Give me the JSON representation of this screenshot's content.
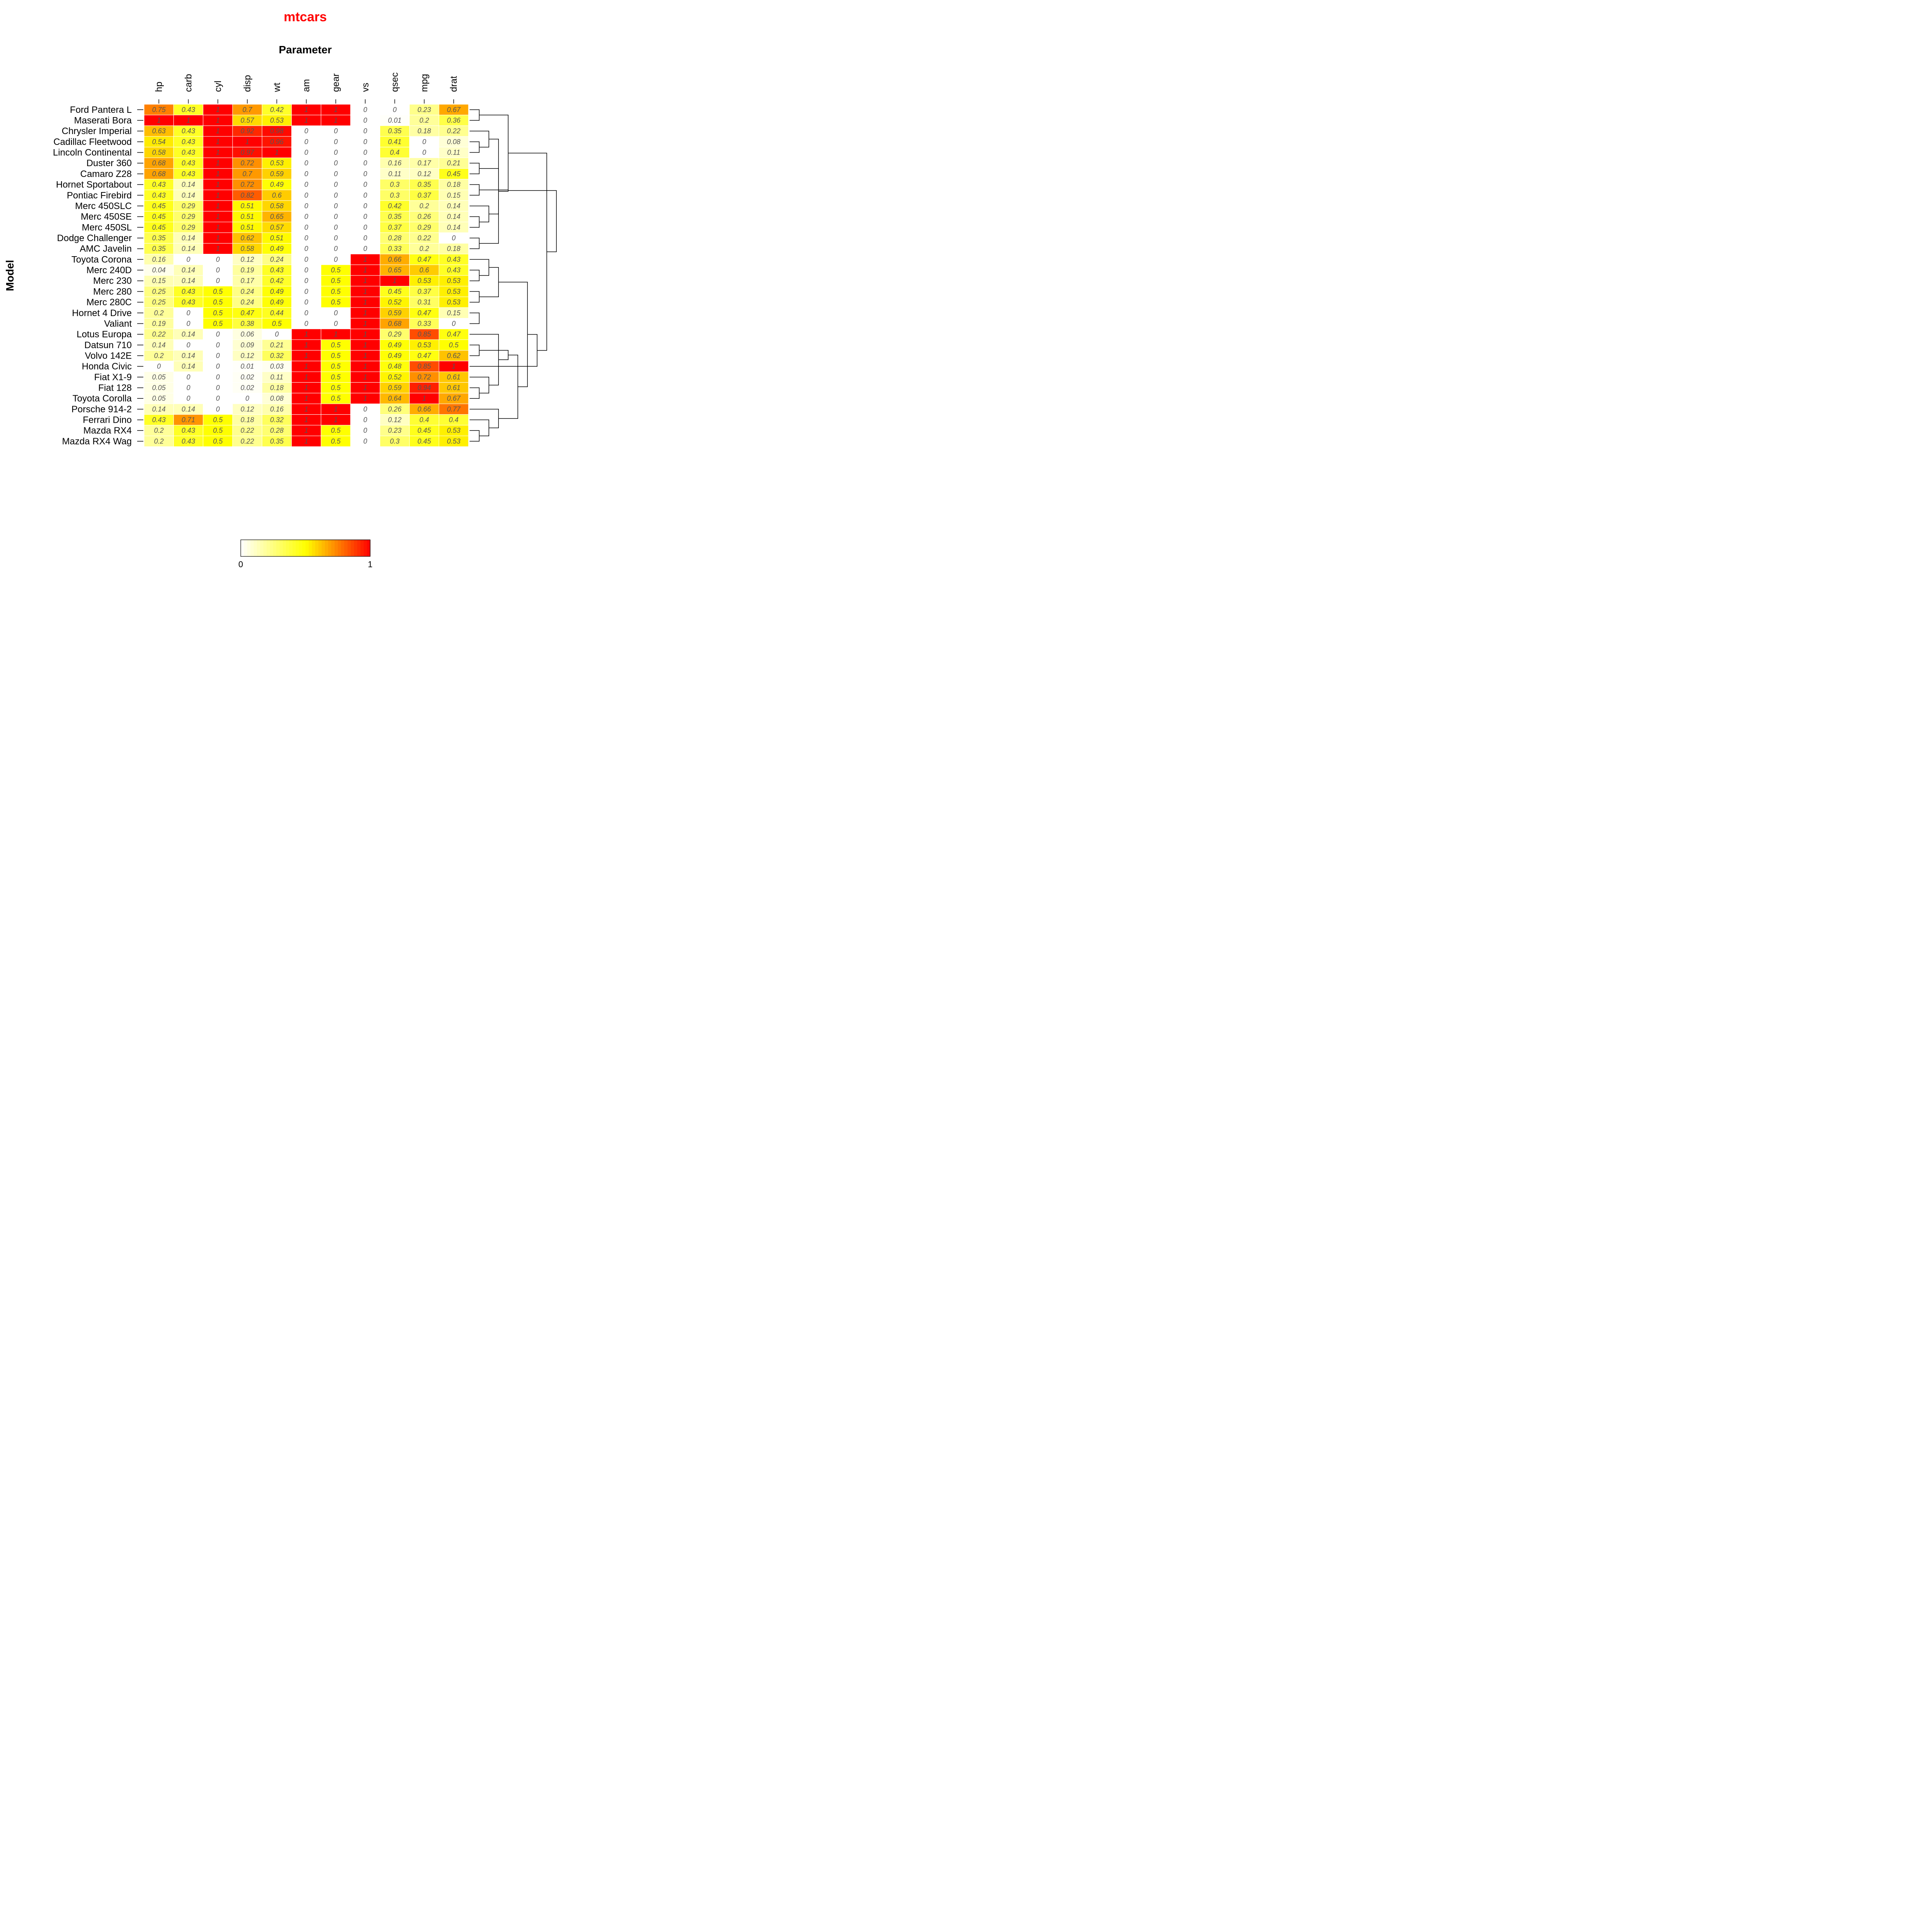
{
  "chart_data": {
    "type": "heatmap",
    "title": "mtcars",
    "xlabel": "Parameter",
    "ylabel": "Model",
    "columns": [
      "hp",
      "carb",
      "cyl",
      "disp",
      "wt",
      "am",
      "gear",
      "vs",
      "qsec",
      "mpg",
      "drat"
    ],
    "rows": [
      "Ford Pantera L",
      "Maserati Bora",
      "Chrysler Imperial",
      "Cadillac Fleetwood",
      "Lincoln Continental",
      "Duster 360",
      "Camaro Z28",
      "Hornet Sportabout",
      "Pontiac Firebird",
      "Merc 450SLC",
      "Merc 450SE",
      "Merc 450SL",
      "Dodge Challenger",
      "AMC Javelin",
      "Toyota Corona",
      "Merc 240D",
      "Merc 230",
      "Merc 280",
      "Merc 280C",
      "Hornet 4 Drive",
      "Valiant",
      "Lotus Europa",
      "Datsun 710",
      "Volvo 142E",
      "Honda Civic",
      "Fiat X1-9",
      "Fiat 128",
      "Toyota Corolla",
      "Porsche 914-2",
      "Ferrari Dino",
      "Mazda RX4",
      "Mazda RX4 Wag"
    ],
    "values": [
      [
        0.75,
        0.43,
        1,
        0.7,
        0.42,
        1,
        1,
        0,
        0,
        0.23,
        0.67
      ],
      [
        1,
        1,
        1,
        0.57,
        0.53,
        1,
        1,
        0,
        0.01,
        0.2,
        0.36
      ],
      [
        0.63,
        0.43,
        1,
        0.92,
        0.98,
        0,
        0,
        0,
        0.35,
        0.18,
        0.22
      ],
      [
        0.54,
        0.43,
        1,
        1,
        0.96,
        0,
        0,
        0,
        0.41,
        0,
        0.08
      ],
      [
        0.58,
        0.43,
        1,
        0.97,
        1,
        0,
        0,
        0,
        0.4,
        0,
        0.11
      ],
      [
        0.68,
        0.43,
        1,
        0.72,
        0.53,
        0,
        0,
        0,
        0.16,
        0.17,
        0.21
      ],
      [
        0.68,
        0.43,
        1,
        0.7,
        0.59,
        0,
        0,
        0,
        0.11,
        0.12,
        0.45
      ],
      [
        0.43,
        0.14,
        1,
        0.72,
        0.49,
        0,
        0,
        0,
        0.3,
        0.35,
        0.18
      ],
      [
        0.43,
        0.14,
        1,
        0.82,
        0.6,
        0,
        0,
        0,
        0.3,
        0.37,
        0.15
      ],
      [
        0.45,
        0.29,
        1,
        0.51,
        0.58,
        0,
        0,
        0,
        0.42,
        0.2,
        0.14
      ],
      [
        0.45,
        0.29,
        1,
        0.51,
        0.65,
        0,
        0,
        0,
        0.35,
        0.26,
        0.14
      ],
      [
        0.45,
        0.29,
        1,
        0.51,
        0.57,
        0,
        0,
        0,
        0.37,
        0.29,
        0.14
      ],
      [
        0.35,
        0.14,
        1,
        0.62,
        0.51,
        0,
        0,
        0,
        0.28,
        0.22,
        0
      ],
      [
        0.35,
        0.14,
        1,
        0.58,
        0.49,
        0,
        0,
        0,
        0.33,
        0.2,
        0.18
      ],
      [
        0.16,
        0,
        0,
        0.12,
        0.24,
        0,
        0,
        1,
        0.66,
        0.47,
        0.43
      ],
      [
        0.04,
        0.14,
        0,
        0.19,
        0.43,
        0,
        0.5,
        1,
        0.65,
        0.6,
        0.43
      ],
      [
        0.15,
        0.14,
        0,
        0.17,
        0.42,
        0,
        0.5,
        1,
        1,
        0.53,
        0.53
      ],
      [
        0.25,
        0.43,
        0.5,
        0.24,
        0.49,
        0,
        0.5,
        1,
        0.45,
        0.37,
        0.53
      ],
      [
        0.25,
        0.43,
        0.5,
        0.24,
        0.49,
        0,
        0.5,
        1,
        0.52,
        0.31,
        0.53
      ],
      [
        0.2,
        0,
        0.5,
        0.47,
        0.44,
        0,
        0,
        1,
        0.59,
        0.47,
        0.15
      ],
      [
        0.19,
        0,
        0.5,
        0.38,
        0.5,
        0,
        0,
        1,
        0.68,
        0.33,
        0
      ],
      [
        0.22,
        0.14,
        0,
        0.06,
        0,
        1,
        1,
        1,
        0.29,
        0.85,
        0.47
      ],
      [
        0.14,
        0,
        0,
        0.09,
        0.21,
        1,
        0.5,
        1,
        0.49,
        0.53,
        0.5
      ],
      [
        0.2,
        0.14,
        0,
        0.12,
        0.32,
        1,
        0.5,
        1,
        0.49,
        0.47,
        0.62
      ],
      [
        0,
        0.14,
        0,
        0.01,
        0.03,
        1,
        0.5,
        1,
        0.48,
        0.85,
        1
      ],
      [
        0.05,
        0,
        0,
        0.02,
        0.11,
        1,
        0.5,
        1,
        0.52,
        0.72,
        0.61
      ],
      [
        0.05,
        0,
        0,
        0.02,
        0.18,
        1,
        0.5,
        1,
        0.59,
        0.94,
        0.61
      ],
      [
        0.05,
        0,
        0,
        0,
        0.08,
        1,
        0.5,
        1,
        0.64,
        1,
        0.67
      ],
      [
        0.14,
        0.14,
        0,
        0.12,
        0.16,
        1,
        1,
        0,
        0.26,
        0.66,
        0.77
      ],
      [
        0.43,
        0.71,
        0.5,
        0.18,
        0.32,
        1,
        1,
        0,
        0.12,
        0.4,
        0.4
      ],
      [
        0.2,
        0.43,
        0.5,
        0.22,
        0.28,
        1,
        0.5,
        0,
        0.23,
        0.45,
        0.53
      ],
      [
        0.2,
        0.43,
        0.5,
        0.22,
        0.35,
        1,
        0.5,
        0,
        0.3,
        0.45,
        0.53
      ]
    ],
    "color_scale": {
      "low": "#ffffff",
      "mid": "#ffff00",
      "high": "#ff0000"
    },
    "legend": {
      "min_label": "0",
      "max_label": "1",
      "placement": "bottom-center"
    },
    "title_color": "#ff0000",
    "col_dendrogram": [
      [
        0,
        1
      ],
      [
        2,
        3
      ],
      [
        4,
        11
      ],
      [
        12,
        5
      ],
      [
        13,
        14
      ],
      [
        5,
        6
      ],
      [
        7,
        8
      ],
      [
        9,
        10
      ],
      [
        18,
        19
      ],
      [
        17,
        20
      ],
      [
        15,
        16
      ],
      [
        21,
        22
      ]
    ],
    "row_dendrogram": [
      [
        3,
        4
      ],
      [
        2,
        32
      ],
      [
        0,
        1
      ],
      [
        10,
        11
      ],
      [
        9,
        35
      ],
      [
        5,
        6
      ],
      [
        12,
        13
      ],
      [
        7,
        8
      ],
      [
        37,
        36
      ],
      [
        40,
        39
      ],
      [
        33,
        38
      ],
      [
        34,
        42
      ],
      [
        15,
        16
      ],
      [
        14,
        44
      ],
      [
        17,
        18
      ],
      [
        19,
        20
      ],
      [
        47,
        48
      ],
      [
        45,
        46
      ],
      [
        26,
        27
      ],
      [
        25,
        50
      ],
      [
        22,
        23
      ],
      [
        21,
        51
      ],
      [
        53,
        52
      ],
      [
        30,
        31
      ],
      [
        29,
        55
      ],
      [
        28,
        56
      ],
      [
        54,
        57
      ],
      [
        49,
        58
      ],
      [
        24,
        59
      ],
      [
        43,
        60
      ],
      [
        41,
        61
      ]
    ]
  }
}
